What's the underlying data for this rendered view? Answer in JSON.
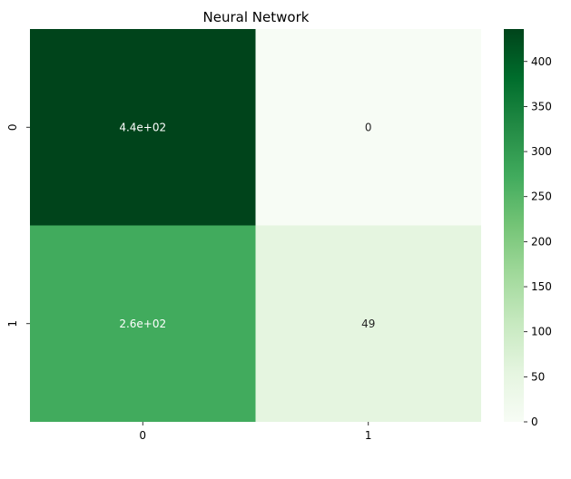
{
  "chart_data": {
    "type": "heatmap",
    "title": "Neural Network",
    "xlabel": "",
    "ylabel": "",
    "x_categories": [
      "0",
      "1"
    ],
    "y_categories": [
      "0",
      "1"
    ],
    "values": [
      [
        436,
        0
      ],
      [
        262,
        49
      ]
    ],
    "annotations": [
      [
        "4.4e+02",
        "0"
      ],
      [
        "2.6e+02",
        "49"
      ]
    ],
    "colormap": "Greens",
    "color_range": [
      0,
      436
    ],
    "colorbar": {
      "ticks": [
        0,
        50,
        100,
        150,
        200,
        250,
        300,
        350,
        400
      ],
      "tick_labels": [
        "0",
        "50",
        "100",
        "150",
        "200",
        "250",
        "300",
        "350",
        "400"
      ],
      "gradient_colors": [
        "#f7fcf5",
        "#e5f5e0",
        "#c7e9c0",
        "#a1d99b",
        "#74c476",
        "#41ab5d",
        "#238b45",
        "#006d2c",
        "#00441b"
      ]
    },
    "cell_colors": [
      [
        "#00441b",
        "#f7fcf5"
      ],
      [
        "#41ab5d",
        "#e5f5e0"
      ]
    ],
    "text_colors": [
      [
        "#ffffff",
        "#262626"
      ],
      [
        "#ffffff",
        "#262626"
      ]
    ],
    "axis_line_color": "#000000"
  }
}
